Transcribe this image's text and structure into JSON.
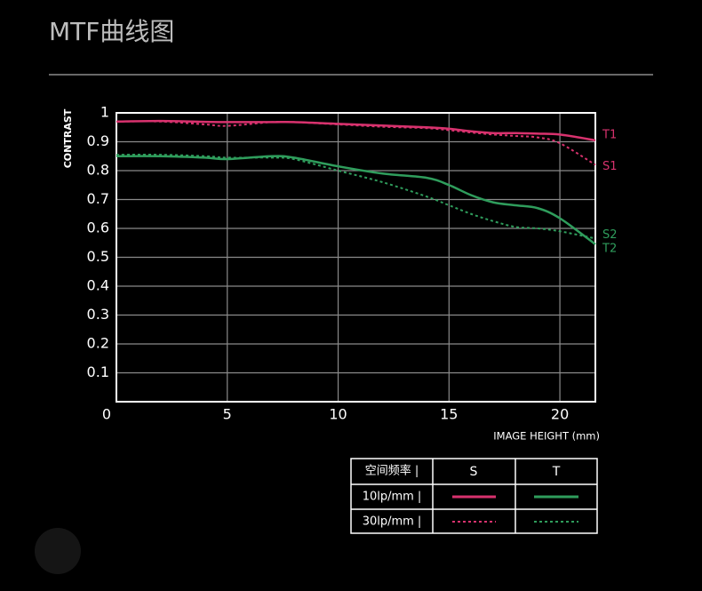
{
  "chart_data": {
    "type": "line",
    "title": "MTF曲线图",
    "y_label": "CONTRAST",
    "x_label": "IMAGE HEIGHT  (mm)",
    "x": [
      0,
      2,
      4,
      5,
      7,
      8,
      10,
      12,
      14,
      15,
      16,
      17,
      18,
      19,
      20,
      21.6
    ],
    "series": [
      {
        "name": "T1",
        "color": "#d8326e",
        "dash": false,
        "values": [
          0.97,
          0.972,
          0.969,
          0.968,
          0.968,
          0.968,
          0.962,
          0.956,
          0.95,
          0.945,
          0.936,
          0.93,
          0.93,
          0.928,
          0.925,
          0.905
        ]
      },
      {
        "name": "S1",
        "color": "#d8326e",
        "dash": true,
        "values": [
          0.97,
          0.97,
          0.96,
          0.955,
          0.968,
          0.968,
          0.96,
          0.952,
          0.947,
          0.94,
          0.932,
          0.925,
          0.92,
          0.915,
          0.895,
          0.82
        ]
      },
      {
        "name": "S2",
        "color": "#2f9d5c",
        "dash": true,
        "values": [
          0.855,
          0.855,
          0.85,
          0.845,
          0.845,
          0.84,
          0.8,
          0.76,
          0.71,
          0.68,
          0.65,
          0.625,
          0.605,
          0.6,
          0.59,
          0.565
        ]
      },
      {
        "name": "T2",
        "color": "#2f9d5c",
        "dash": false,
        "values": [
          0.85,
          0.85,
          0.845,
          0.84,
          0.85,
          0.845,
          0.815,
          0.79,
          0.775,
          0.75,
          0.715,
          0.69,
          0.68,
          0.67,
          0.635,
          0.545
        ]
      }
    ],
    "xlim": [
      0,
      21.6
    ],
    "ylim": [
      0,
      1
    ],
    "xticks": [
      0,
      5,
      10,
      15,
      20
    ],
    "yticks": [
      0.1,
      0.2,
      0.3,
      0.4,
      0.5,
      0.6,
      0.7,
      0.8,
      0.9,
      1
    ],
    "grid": true,
    "legend": {
      "headers": [
        "空间频率 |",
        "S",
        "T"
      ],
      "rows": [
        "10lp/mm |",
        "30lp/mm |"
      ]
    }
  }
}
